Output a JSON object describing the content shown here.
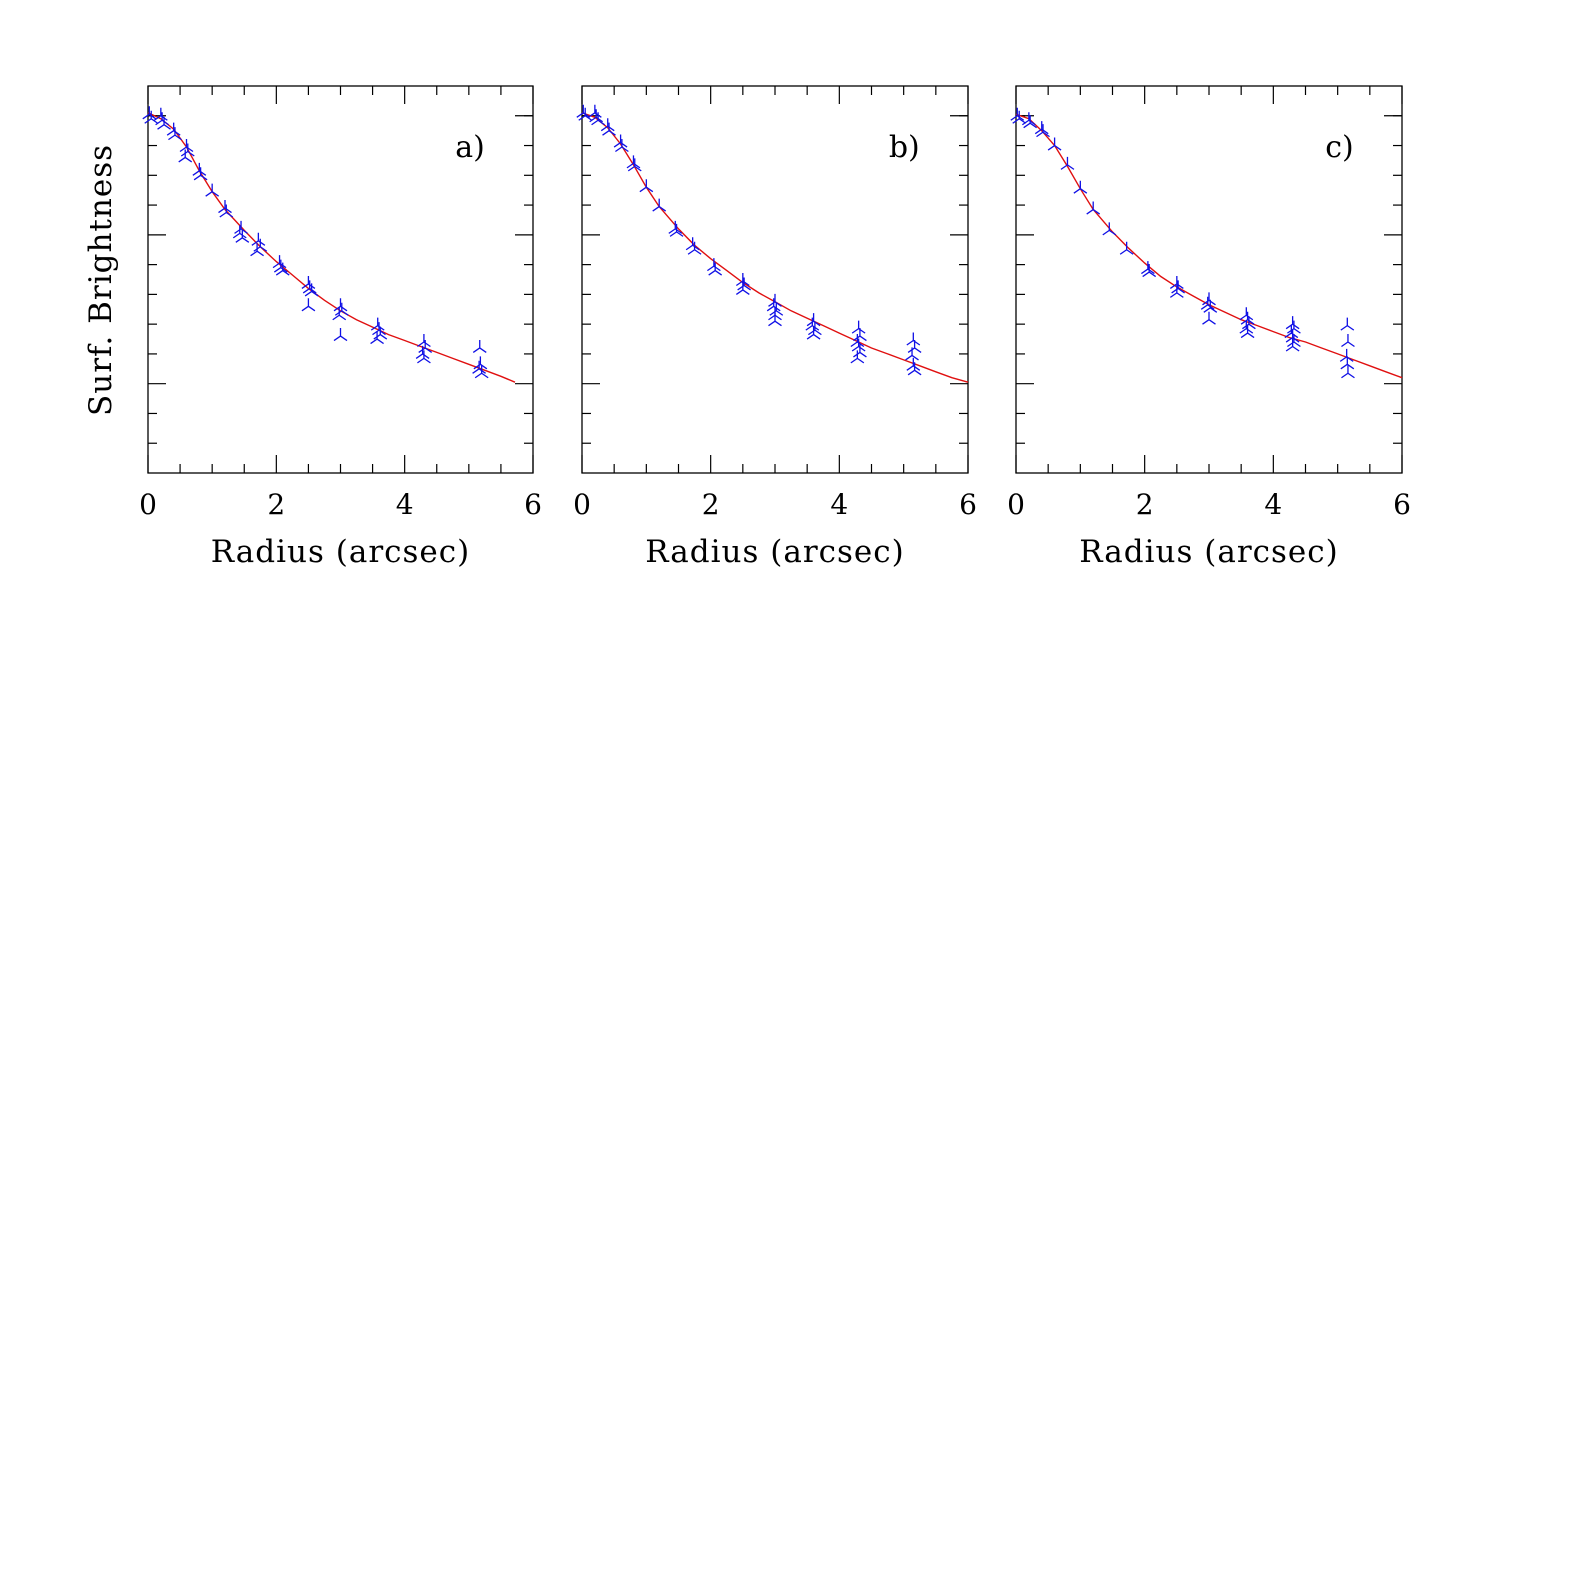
{
  "figure": {
    "ylabel": "Surf. Brightness",
    "colors": {
      "data": "#1010e6",
      "model": "#e01010",
      "axes": "#000000"
    }
  },
  "chart_data": [
    {
      "type": "scatter",
      "panel_label": "a)",
      "xlabel": "Radius (arcsec)",
      "ylabel": "Surf. Brightness",
      "xlim": [
        0,
        6
      ],
      "ylim": [
        0,
        13
      ],
      "x_ticks": [
        0,
        2,
        4,
        6
      ],
      "y_tick_labels": [],
      "grid": false,
      "marker": "tri-down",
      "series": [
        {
          "kind": "points",
          "points": [
            [
              0.02,
              12.05
            ],
            [
              0.05,
              11.9
            ],
            [
              0.2,
              12.0
            ],
            [
              0.22,
              11.85
            ],
            [
              0.25,
              11.7
            ],
            [
              0.4,
              11.5
            ],
            [
              0.42,
              11.35
            ],
            [
              0.6,
              10.95
            ],
            [
              0.62,
              10.8
            ],
            [
              0.58,
              10.6
            ],
            [
              0.8,
              10.15
            ],
            [
              0.82,
              10.0
            ],
            [
              1.0,
              9.45
            ],
            [
              1.2,
              8.9
            ],
            [
              1.22,
              8.75
            ],
            [
              1.45,
              8.2
            ],
            [
              1.43,
              8.05
            ],
            [
              1.47,
              7.9
            ],
            [
              1.72,
              7.8
            ],
            [
              1.75,
              7.6
            ],
            [
              1.7,
              7.45
            ],
            [
              2.05,
              7.05
            ],
            [
              2.07,
              6.9
            ],
            [
              2.1,
              6.8
            ],
            [
              2.5,
              6.35
            ],
            [
              2.52,
              6.2
            ],
            [
              2.55,
              6.1
            ],
            [
              2.5,
              5.6
            ],
            [
              3.0,
              5.6
            ],
            [
              3.02,
              5.45
            ],
            [
              2.98,
              5.3
            ],
            [
              3.0,
              4.6
            ],
            [
              3.58,
              4.95
            ],
            [
              3.6,
              4.8
            ],
            [
              3.62,
              4.65
            ],
            [
              3.57,
              4.5
            ],
            [
              4.3,
              4.4
            ],
            [
              4.32,
              4.2
            ],
            [
              4.28,
              4.0
            ],
            [
              4.3,
              3.85
            ],
            [
              5.17,
              4.2
            ],
            [
              5.18,
              3.65
            ],
            [
              5.16,
              3.5
            ],
            [
              5.2,
              3.35
            ]
          ]
        },
        {
          "kind": "model",
          "points": [
            [
              0,
              12.1
            ],
            [
              0.2,
              11.9
            ],
            [
              0.4,
              11.55
            ],
            [
              0.6,
              10.95
            ],
            [
              0.8,
              10.15
            ],
            [
              1.0,
              9.45
            ],
            [
              1.2,
              8.85
            ],
            [
              1.5,
              8.15
            ],
            [
              1.75,
              7.6
            ],
            [
              2.0,
              7.1
            ],
            [
              2.25,
              6.65
            ],
            [
              2.5,
              6.2
            ],
            [
              2.75,
              5.8
            ],
            [
              3.0,
              5.45
            ],
            [
              3.25,
              5.15
            ],
            [
              3.5,
              4.9
            ],
            [
              3.75,
              4.65
            ],
            [
              4.0,
              4.45
            ],
            [
              4.25,
              4.25
            ],
            [
              4.5,
              4.05
            ],
            [
              4.75,
              3.85
            ],
            [
              5.0,
              3.65
            ],
            [
              5.25,
              3.45
            ],
            [
              5.5,
              3.25
            ],
            [
              5.72,
              3.05
            ]
          ]
        }
      ]
    },
    {
      "type": "scatter",
      "panel_label": "b)",
      "xlabel": "Radius (arcsec)",
      "xlim": [
        0,
        6
      ],
      "ylim": [
        0,
        13
      ],
      "x_ticks": [
        0,
        2,
        4,
        6
      ],
      "grid": false,
      "marker": "tri-down",
      "series": [
        {
          "kind": "points",
          "points": [
            [
              0.02,
              12.1
            ],
            [
              0.05,
              12.0
            ],
            [
              0.2,
              12.1
            ],
            [
              0.22,
              11.95
            ],
            [
              0.25,
              11.85
            ],
            [
              0.4,
              11.65
            ],
            [
              0.42,
              11.5
            ],
            [
              0.6,
              11.1
            ],
            [
              0.62,
              10.95
            ],
            [
              0.8,
              10.4
            ],
            [
              0.82,
              10.3
            ],
            [
              1.0,
              9.6
            ],
            [
              1.2,
              8.95
            ],
            [
              1.45,
              8.2
            ],
            [
              1.47,
              8.1
            ],
            [
              1.72,
              7.65
            ],
            [
              1.75,
              7.5
            ],
            [
              2.05,
              6.95
            ],
            [
              2.07,
              6.8
            ],
            [
              2.5,
              6.45
            ],
            [
              2.52,
              6.3
            ],
            [
              2.5,
              6.15
            ],
            [
              3.0,
              5.75
            ],
            [
              2.98,
              5.6
            ],
            [
              3.02,
              5.45
            ],
            [
              3.0,
              5.3
            ],
            [
              3.0,
              5.1
            ],
            [
              3.6,
              5.1
            ],
            [
              3.58,
              4.95
            ],
            [
              3.62,
              4.8
            ],
            [
              3.6,
              4.65
            ],
            [
              4.3,
              4.85
            ],
            [
              4.32,
              4.6
            ],
            [
              4.28,
              4.4
            ],
            [
              4.3,
              4.25
            ],
            [
              4.32,
              4.05
            ],
            [
              4.28,
              3.85
            ],
            [
              5.15,
              4.45
            ],
            [
              5.17,
              4.2
            ],
            [
              5.13,
              3.95
            ],
            [
              5.15,
              3.6
            ],
            [
              5.17,
              3.45
            ]
          ]
        },
        {
          "kind": "model",
          "points": [
            [
              0,
              12.1
            ],
            [
              0.2,
              11.95
            ],
            [
              0.4,
              11.6
            ],
            [
              0.6,
              11.05
            ],
            [
              0.8,
              10.35
            ],
            [
              1.0,
              9.6
            ],
            [
              1.2,
              8.95
            ],
            [
              1.5,
              8.2
            ],
            [
              1.75,
              7.65
            ],
            [
              2.0,
              7.2
            ],
            [
              2.25,
              6.8
            ],
            [
              2.5,
              6.4
            ],
            [
              2.75,
              6.05
            ],
            [
              3.0,
              5.75
            ],
            [
              3.25,
              5.45
            ],
            [
              3.5,
              5.2
            ],
            [
              3.75,
              4.95
            ],
            [
              4.0,
              4.7
            ],
            [
              4.25,
              4.45
            ],
            [
              4.5,
              4.2
            ],
            [
              4.75,
              4.0
            ],
            [
              5.0,
              3.8
            ],
            [
              5.25,
              3.6
            ],
            [
              5.5,
              3.4
            ],
            [
              5.75,
              3.2
            ],
            [
              6.0,
              3.05
            ]
          ]
        }
      ]
    },
    {
      "type": "scatter",
      "panel_label": "c)",
      "xlabel": "Radius (arcsec)",
      "xlim": [
        0,
        6
      ],
      "ylim": [
        0,
        13
      ],
      "x_ticks": [
        0,
        2,
        4,
        6
      ],
      "grid": false,
      "marker": "tri-down",
      "series": [
        {
          "kind": "points",
          "points": [
            [
              0.02,
              12.0
            ],
            [
              0.05,
              11.9
            ],
            [
              0.2,
              11.85
            ],
            [
              0.22,
              11.75
            ],
            [
              0.4,
              11.55
            ],
            [
              0.42,
              11.45
            ],
            [
              0.6,
              11.0
            ],
            [
              0.8,
              10.35
            ],
            [
              1.0,
              9.55
            ],
            [
              1.2,
              8.85
            ],
            [
              1.45,
              8.15
            ],
            [
              1.72,
              7.5
            ],
            [
              2.05,
              6.85
            ],
            [
              2.07,
              6.75
            ],
            [
              2.5,
              6.35
            ],
            [
              2.52,
              6.2
            ],
            [
              2.5,
              6.05
            ],
            [
              3.0,
              5.8
            ],
            [
              2.98,
              5.65
            ],
            [
              3.02,
              5.55
            ],
            [
              3.0,
              5.15
            ],
            [
              3.58,
              5.3
            ],
            [
              3.6,
              5.15
            ],
            [
              3.62,
              5.0
            ],
            [
              3.58,
              4.85
            ],
            [
              3.6,
              4.7
            ],
            [
              4.3,
              5.0
            ],
            [
              4.32,
              4.85
            ],
            [
              4.28,
              4.7
            ],
            [
              4.3,
              4.55
            ],
            [
              4.32,
              4.4
            ],
            [
              4.3,
              4.25
            ],
            [
              5.15,
              4.95
            ],
            [
              5.16,
              4.4
            ],
            [
              5.14,
              3.9
            ],
            [
              5.15,
              3.65
            ],
            [
              5.16,
              3.35
            ]
          ]
        },
        {
          "kind": "model",
          "points": [
            [
              0,
              12.05
            ],
            [
              0.2,
              11.9
            ],
            [
              0.4,
              11.5
            ],
            [
              0.6,
              11.0
            ],
            [
              0.8,
              10.3
            ],
            [
              1.0,
              9.55
            ],
            [
              1.2,
              8.85
            ],
            [
              1.5,
              8.1
            ],
            [
              1.75,
              7.55
            ],
            [
              2.0,
              7.05
            ],
            [
              2.25,
              6.6
            ],
            [
              2.5,
              6.25
            ],
            [
              2.75,
              5.95
            ],
            [
              3.0,
              5.65
            ],
            [
              3.25,
              5.4
            ],
            [
              3.5,
              5.15
            ],
            [
              3.75,
              4.95
            ],
            [
              4.0,
              4.75
            ],
            [
              4.25,
              4.55
            ],
            [
              4.5,
              4.4
            ],
            [
              4.75,
              4.2
            ],
            [
              5.0,
              4.0
            ],
            [
              5.25,
              3.8
            ],
            [
              5.5,
              3.6
            ],
            [
              5.75,
              3.4
            ],
            [
              6.0,
              3.2
            ]
          ]
        }
      ]
    }
  ]
}
